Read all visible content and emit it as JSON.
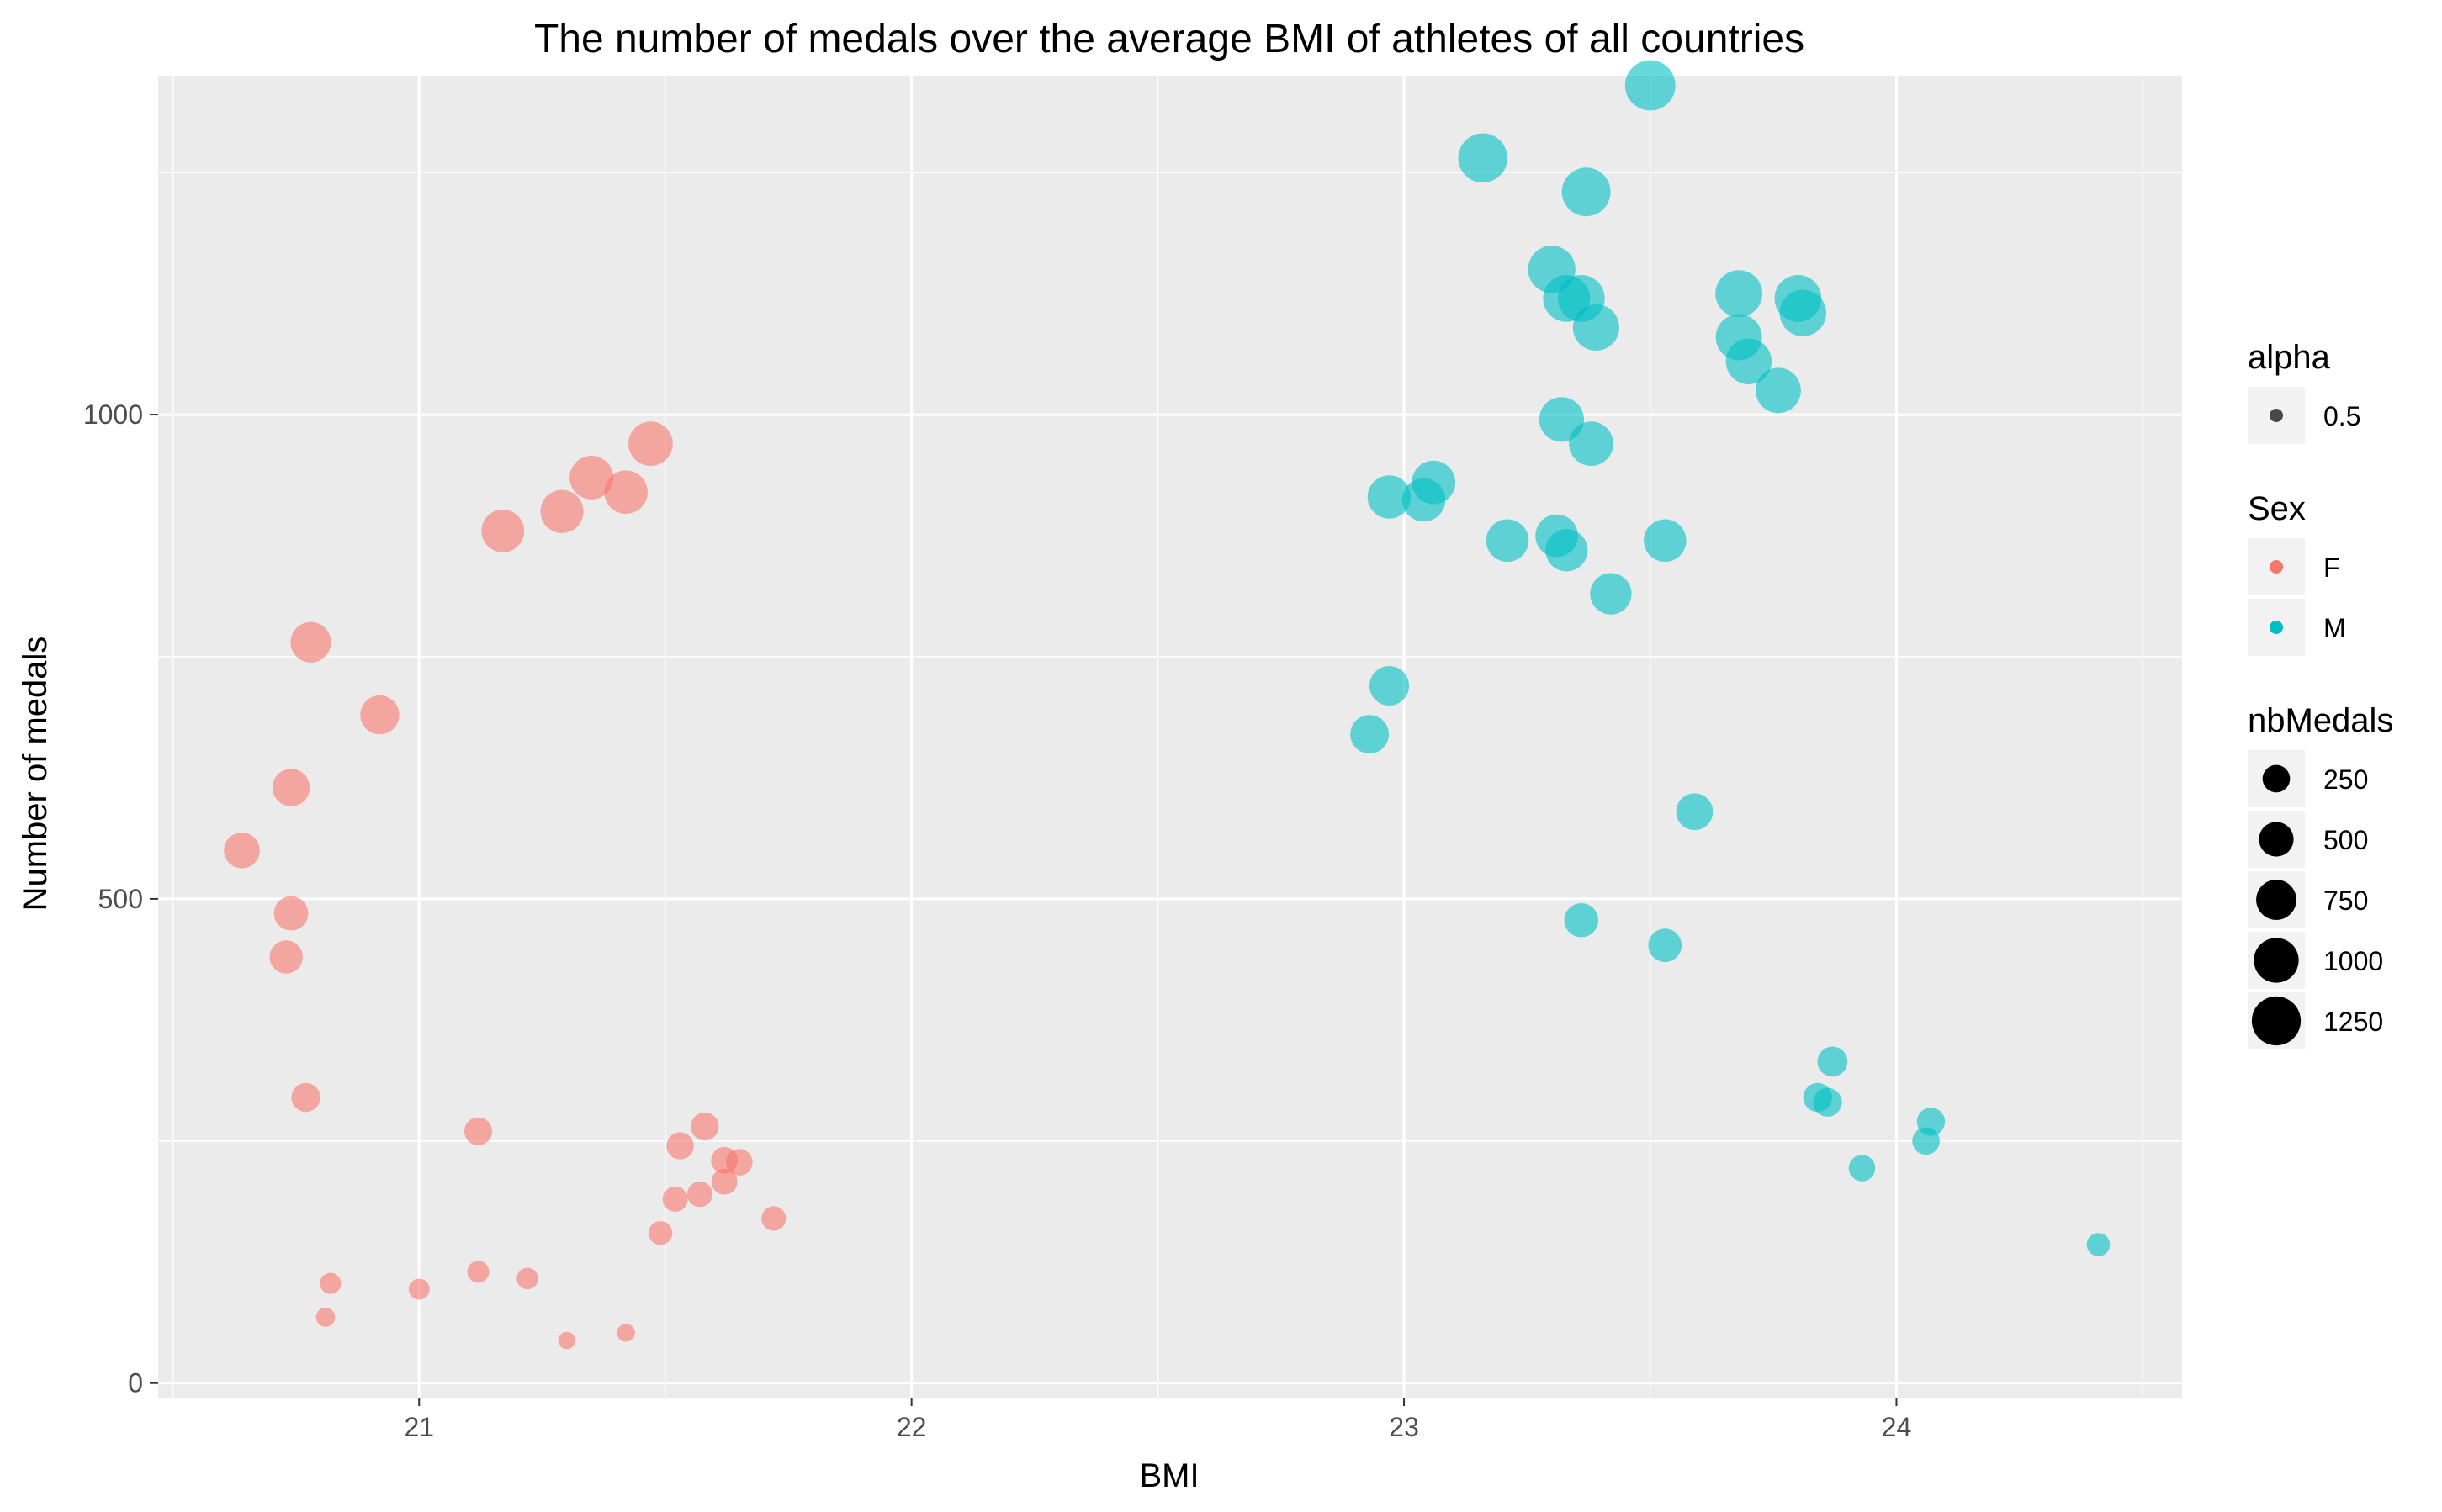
{
  "chart_data": {
    "type": "scatter",
    "title": "The number of medals over the average BMI of athletes of all countries",
    "xlabel": "BMI",
    "ylabel": "Number of medals",
    "xlim": [
      20.47,
      24.58
    ],
    "ylim": [
      -15,
      1350
    ],
    "x_ticks": [
      21,
      22,
      23,
      24
    ],
    "y_ticks": [
      0,
      500,
      1000
    ],
    "grid": true,
    "legend_position": "right",
    "legends": [
      {
        "title": "alpha",
        "entries": [
          {
            "label": "0.5",
            "color": "#000000",
            "alpha": 0.7
          }
        ]
      },
      {
        "title": "Sex",
        "entries": [
          {
            "label": "F",
            "color": "#F8766D"
          },
          {
            "label": "M",
            "color": "#00BFC4"
          }
        ]
      },
      {
        "title": "nbMedals",
        "entries": [
          {
            "label": "250",
            "value": 250
          },
          {
            "label": "500",
            "value": 500
          },
          {
            "label": "750",
            "value": 750
          },
          {
            "label": "1000",
            "value": 1000
          },
          {
            "label": "1250",
            "value": 1250
          }
        ]
      }
    ],
    "colors": {
      "F": "#F8766D",
      "M": "#00BFC4"
    },
    "point_alpha": 0.6,
    "series": [
      {
        "name": "F",
        "points": [
          {
            "x": 21.47,
            "y": 970
          },
          {
            "x": 21.35,
            "y": 935
          },
          {
            "x": 21.42,
            "y": 920
          },
          {
            "x": 21.29,
            "y": 900
          },
          {
            "x": 21.17,
            "y": 880
          },
          {
            "x": 20.78,
            "y": 765
          },
          {
            "x": 20.92,
            "y": 690
          },
          {
            "x": 20.74,
            "y": 615
          },
          {
            "x": 20.64,
            "y": 550
          },
          {
            "x": 20.74,
            "y": 485
          },
          {
            "x": 20.73,
            "y": 440
          },
          {
            "x": 20.77,
            "y": 295
          },
          {
            "x": 21.12,
            "y": 260
          },
          {
            "x": 21.58,
            "y": 265
          },
          {
            "x": 21.53,
            "y": 245
          },
          {
            "x": 21.62,
            "y": 230
          },
          {
            "x": 21.65,
            "y": 228
          },
          {
            "x": 21.62,
            "y": 208
          },
          {
            "x": 21.57,
            "y": 195
          },
          {
            "x": 21.52,
            "y": 190
          },
          {
            "x": 21.72,
            "y": 170
          },
          {
            "x": 21.49,
            "y": 155
          },
          {
            "x": 21.12,
            "y": 115
          },
          {
            "x": 21.22,
            "y": 108
          },
          {
            "x": 20.82,
            "y": 103
          },
          {
            "x": 21.0,
            "y": 97
          },
          {
            "x": 20.81,
            "y": 68
          },
          {
            "x": 21.42,
            "y": 52
          },
          {
            "x": 21.3,
            "y": 44
          }
        ]
      },
      {
        "name": "M",
        "points": [
          {
            "x": 23.5,
            "y": 1340
          },
          {
            "x": 23.16,
            "y": 1265
          },
          {
            "x": 23.37,
            "y": 1230
          },
          {
            "x": 23.3,
            "y": 1150
          },
          {
            "x": 23.33,
            "y": 1120
          },
          {
            "x": 23.36,
            "y": 1120
          },
          {
            "x": 23.39,
            "y": 1090
          },
          {
            "x": 23.68,
            "y": 1125
          },
          {
            "x": 23.8,
            "y": 1120
          },
          {
            "x": 23.81,
            "y": 1105
          },
          {
            "x": 23.68,
            "y": 1080
          },
          {
            "x": 23.7,
            "y": 1055
          },
          {
            "x": 23.76,
            "y": 1025
          },
          {
            "x": 23.32,
            "y": 995
          },
          {
            "x": 23.38,
            "y": 970
          },
          {
            "x": 23.06,
            "y": 930
          },
          {
            "x": 22.97,
            "y": 915
          },
          {
            "x": 23.04,
            "y": 912
          },
          {
            "x": 23.21,
            "y": 870
          },
          {
            "x": 23.31,
            "y": 875
          },
          {
            "x": 23.33,
            "y": 860
          },
          {
            "x": 23.53,
            "y": 870
          },
          {
            "x": 23.42,
            "y": 815
          },
          {
            "x": 22.97,
            "y": 720
          },
          {
            "x": 22.93,
            "y": 670
          },
          {
            "x": 23.59,
            "y": 590
          },
          {
            "x": 23.36,
            "y": 478
          },
          {
            "x": 23.53,
            "y": 452
          },
          {
            "x": 23.87,
            "y": 332
          },
          {
            "x": 23.84,
            "y": 295
          },
          {
            "x": 23.86,
            "y": 290
          },
          {
            "x": 24.07,
            "y": 270
          },
          {
            "x": 24.06,
            "y": 250
          },
          {
            "x": 23.93,
            "y": 222
          },
          {
            "x": 24.41,
            "y": 143
          }
        ]
      }
    ]
  }
}
